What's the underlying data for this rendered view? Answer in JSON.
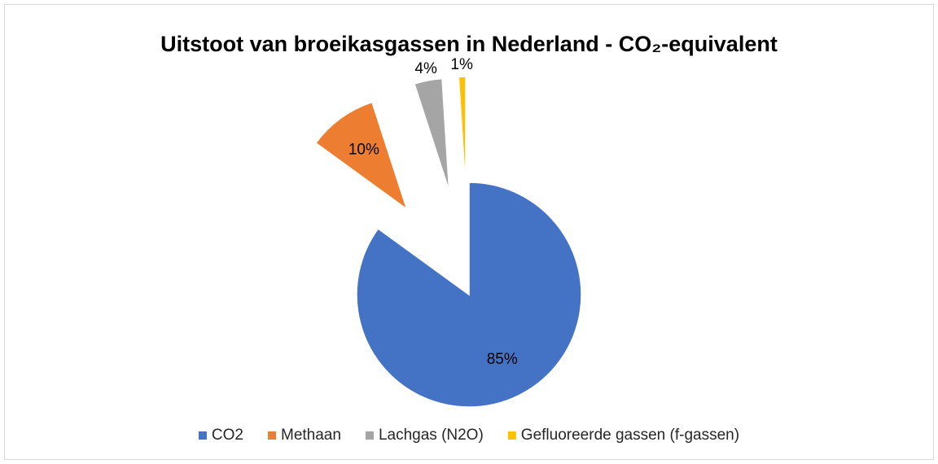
{
  "chart_data": {
    "type": "pie",
    "title": "Uitstoot van broeikasgassen in Nederland - CO₂-equivalent",
    "categories": [
      "CO2",
      "Methaan",
      "Lachgas (N2O)",
      "Gefluoreerde gassen (f-gassen)"
    ],
    "values": [
      85,
      10,
      4,
      1
    ],
    "value_labels": [
      "85%",
      "10%",
      "4%",
      "1%"
    ],
    "colors": [
      "#4472c4",
      "#ed7d31",
      "#a5a5a5",
      "#ffc000"
    ],
    "legend": "bottom"
  }
}
